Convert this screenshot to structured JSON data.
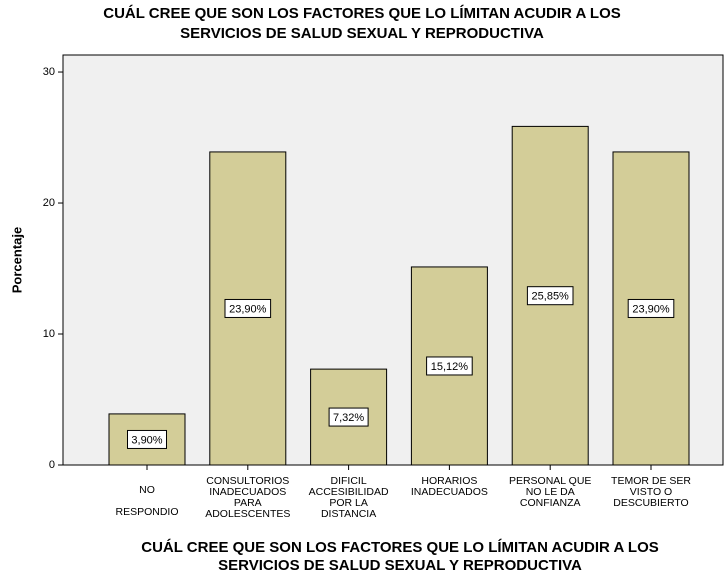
{
  "chart_data": {
    "type": "bar",
    "title": [
      "CUÁL CREE QUE SON LOS FACTORES QUE LO LÍMITAN ACUDIR A LOS",
      "SERVICIOS DE SALUD SEXUAL Y       REPRODUCTIVA"
    ],
    "x_label": [
      "CUÁL CREE QUE SON LOS FACTORES QUE LO LÍMITAN ACUDIR A LOS",
      "SERVICIOS DE SALUD SEXUAL Y       REPRODUCTIVA"
    ],
    "y_label": "Porcentaje",
    "categories": [
      [
        "NO",
        "RESPONDIO"
      ],
      [
        "CONSULTORIOS",
        "INADECUADOS",
        "PARA",
        "ADOLESCENTES"
      ],
      [
        "DIFICIL",
        "ACCESIBILIDAD",
        "POR LA",
        "DISTANCIA"
      ],
      [
        "HORARIOS",
        "INADECUADOS"
      ],
      [
        "PERSONAL QUE",
        "NO LE DA",
        "CONFIANZA"
      ],
      [
        "TEMOR DE SER",
        "VISTO O",
        "DESCUBIERTO"
      ]
    ],
    "values": [
      3.9,
      23.9,
      7.32,
      15.12,
      25.85,
      23.9
    ],
    "value_labels": [
      "3,90%",
      "23,90%",
      "7,32%",
      "15,12%",
      "25,85%",
      "23,90%"
    ],
    "color": "#d3cd98",
    "ylim": [
      0,
      31.3
    ],
    "yticks": [
      0,
      10,
      20,
      30
    ]
  }
}
